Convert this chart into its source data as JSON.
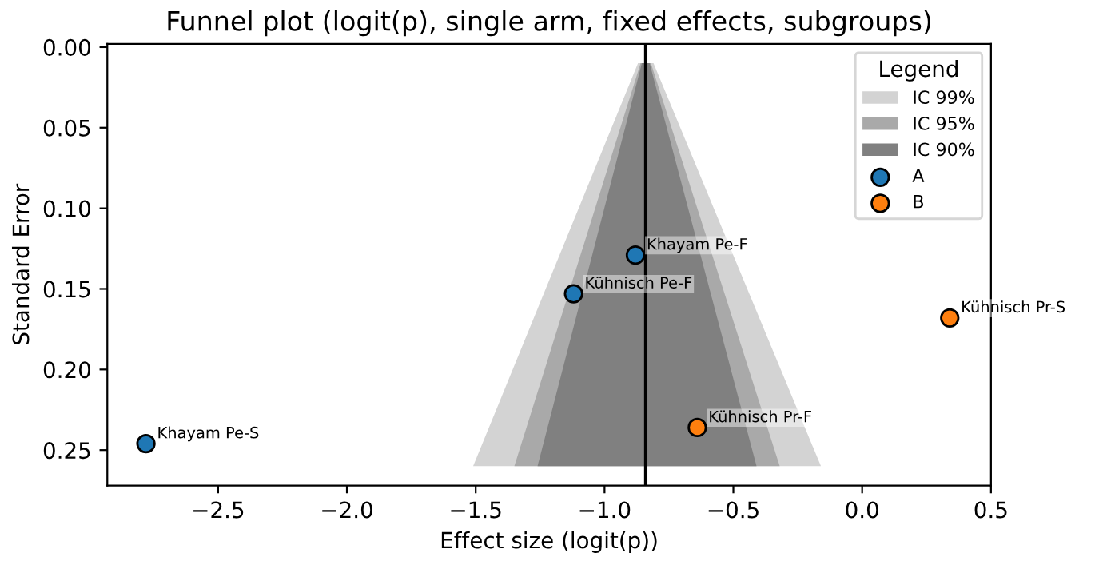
{
  "chart_data": {
    "type": "scatter",
    "title": "Funnel plot (logit(p), single arm, fixed effects, subgroups)",
    "xlabel": "Effect size (logit(p))",
    "ylabel": "Standard Error",
    "legend_title": "Legend",
    "xlim": [
      -2.93,
      0.5
    ],
    "ylim": [
      0.272,
      -0.002
    ],
    "xticks": [
      {
        "value": -2.5,
        "label": "−2.5"
      },
      {
        "value": -2.0,
        "label": "−2.0"
      },
      {
        "value": -1.5,
        "label": "−1.5"
      },
      {
        "value": -1.0,
        "label": "−1.0"
      },
      {
        "value": -0.5,
        "label": "−0.5"
      },
      {
        "value": 0.0,
        "label": "0.0"
      },
      {
        "value": 0.5,
        "label": "0.5"
      }
    ],
    "yticks": [
      {
        "value": 0.0,
        "label": "0.00"
      },
      {
        "value": 0.05,
        "label": "0.05"
      },
      {
        "value": 0.1,
        "label": "0.10"
      },
      {
        "value": 0.15,
        "label": "0.15"
      },
      {
        "value": 0.2,
        "label": "0.20"
      },
      {
        "value": 0.25,
        "label": "0.25"
      }
    ],
    "grid": false,
    "legend": "top right",
    "series": [
      {
        "name": "IC 99%",
        "type": "area",
        "color": "#d3d3d3",
        "x": [
          -1.51,
          -0.87,
          -0.81,
          -0.16
        ],
        "values": [
          0.26,
          0.01,
          0.01,
          0.26
        ]
      },
      {
        "name": "IC 95%",
        "type": "area",
        "color": "#a9a9a9",
        "x": [
          -1.35,
          -0.86,
          -0.82,
          -0.32
        ],
        "values": [
          0.26,
          0.01,
          0.01,
          0.26
        ]
      },
      {
        "name": "IC 90%",
        "type": "area",
        "color": "#808080",
        "x": [
          -1.26,
          -0.855,
          -0.825,
          -0.41
        ],
        "values": [
          0.26,
          0.01,
          0.01,
          0.26
        ]
      },
      {
        "name": "A",
        "type": "scatter",
        "marker": "circle",
        "color": "#1f77b4",
        "x": [
          -0.88,
          -1.12,
          -2.78
        ],
        "values": [
          0.129,
          0.153,
          0.246
        ]
      },
      {
        "name": "B",
        "type": "scatter",
        "marker": "circle",
        "color": "#ff7f0e",
        "x": [
          0.34,
          -0.64
        ],
        "values": [
          0.168,
          0.236
        ]
      }
    ],
    "ref_lines": [
      {
        "axis": "x",
        "value": -0.84,
        "color": "#000000"
      }
    ],
    "annotations": [
      {
        "text": "Khayam Pe-F",
        "x": -0.88,
        "y": 0.129
      },
      {
        "text": "Kühnisch Pe-F",
        "x": -1.12,
        "y": 0.153
      },
      {
        "text": "Khayam Pe-S",
        "x": -2.78,
        "y": 0.246
      },
      {
        "text": "Kühnisch Pr-S",
        "x": 0.34,
        "y": 0.168
      },
      {
        "text": "Kühnisch Pr-F",
        "x": -0.64,
        "y": 0.236
      }
    ]
  }
}
